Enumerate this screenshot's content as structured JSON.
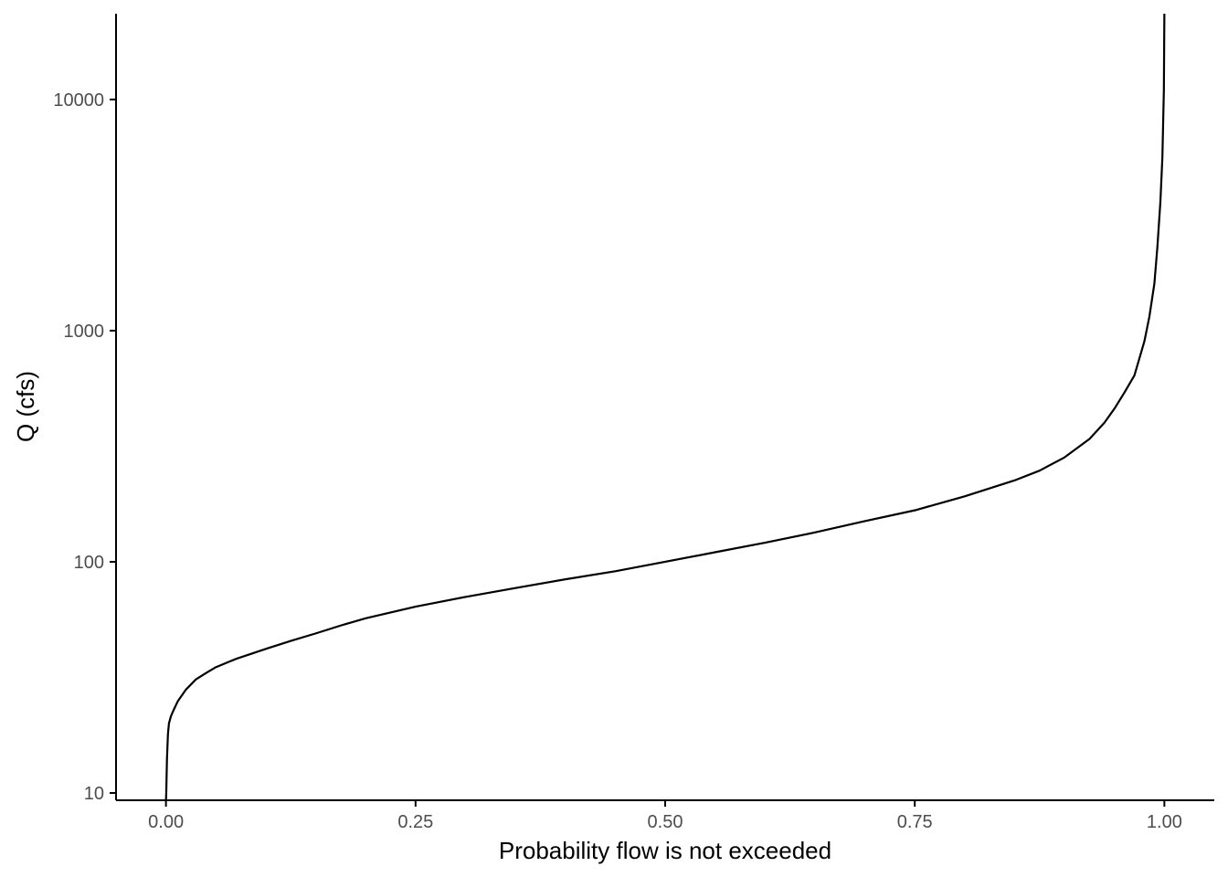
{
  "chart_data": {
    "type": "line",
    "title": "",
    "xlabel": "Probability flow is not exceeded",
    "ylabel": "Q (cfs)",
    "x_ticks": [
      "0.00",
      "0.25",
      "0.50",
      "0.75",
      "1.00"
    ],
    "x_tick_values": [
      0,
      0.25,
      0.5,
      0.75,
      1.0
    ],
    "y_ticks": [
      "10",
      "100",
      "1000",
      "10000"
    ],
    "y_tick_values": [
      10,
      100,
      1000,
      10000
    ],
    "xlim": [
      -0.05,
      1.05
    ],
    "ylim": [
      9.3,
      23500
    ],
    "y_scale": "log",
    "grid": false,
    "legend": "none",
    "line_color": "#000000",
    "series": [
      {
        "x": [
          0,
          0.0003,
          0.001,
          0.002,
          0.003,
          0.005,
          0.008,
          0.012,
          0.02,
          0.03,
          0.04,
          0.05,
          0.07,
          0.1,
          0.125,
          0.15,
          0.175,
          0.2,
          0.25,
          0.3,
          0.35,
          0.4,
          0.45,
          0.5,
          0.55,
          0.6,
          0.65,
          0.7,
          0.75,
          0.8,
          0.85,
          0.875,
          0.9,
          0.925,
          0.94,
          0.95,
          0.96,
          0.97,
          0.98,
          0.985,
          0.99,
          0.993,
          0.996,
          0.998,
          0.9995,
          1.0
        ],
        "y": [
          9.3,
          10,
          14,
          18,
          20,
          21.5,
          23,
          25,
          28,
          31,
          33,
          35,
          38,
          42,
          45.5,
          49,
          53,
          57,
          64,
          70.5,
          77,
          84,
          91,
          100,
          110,
          121,
          134,
          150,
          167,
          192,
          225,
          248,
          283,
          340,
          400,
          460,
          540,
          640,
          900,
          1150,
          1600,
          2300,
          3600,
          5600,
          11000,
          23500
        ]
      }
    ]
  }
}
